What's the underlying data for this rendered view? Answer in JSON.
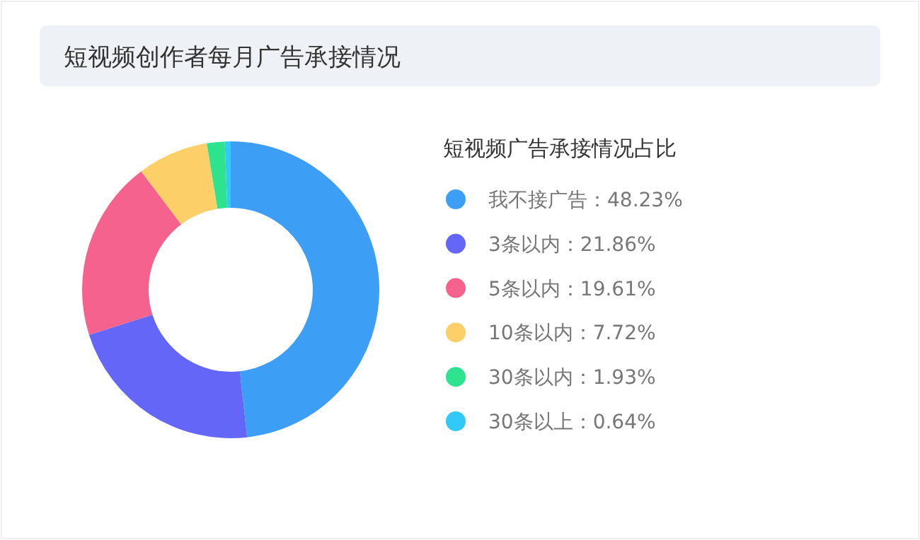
{
  "chart_data": {
    "type": "donut",
    "title": "短视频创作者每月广告承接情况",
    "legend_title": "短视频广告承接情况占比",
    "categories": [
      "我不接广告",
      "3条以内",
      "5条以内",
      "10条以内",
      "30条以内",
      "30条以上"
    ],
    "values": [
      48.23,
      21.86,
      19.61,
      7.72,
      1.93,
      0.64
    ],
    "value_labels": [
      "48.23%",
      "21.86%",
      "19.61%",
      "7.72%",
      "1.93%",
      "0.64%"
    ],
    "colors": [
      "#3d9ef6",
      "#6366f6",
      "#f5628d",
      "#fdcf68",
      "#2de38e",
      "#33c9f6"
    ],
    "legend": "right"
  }
}
